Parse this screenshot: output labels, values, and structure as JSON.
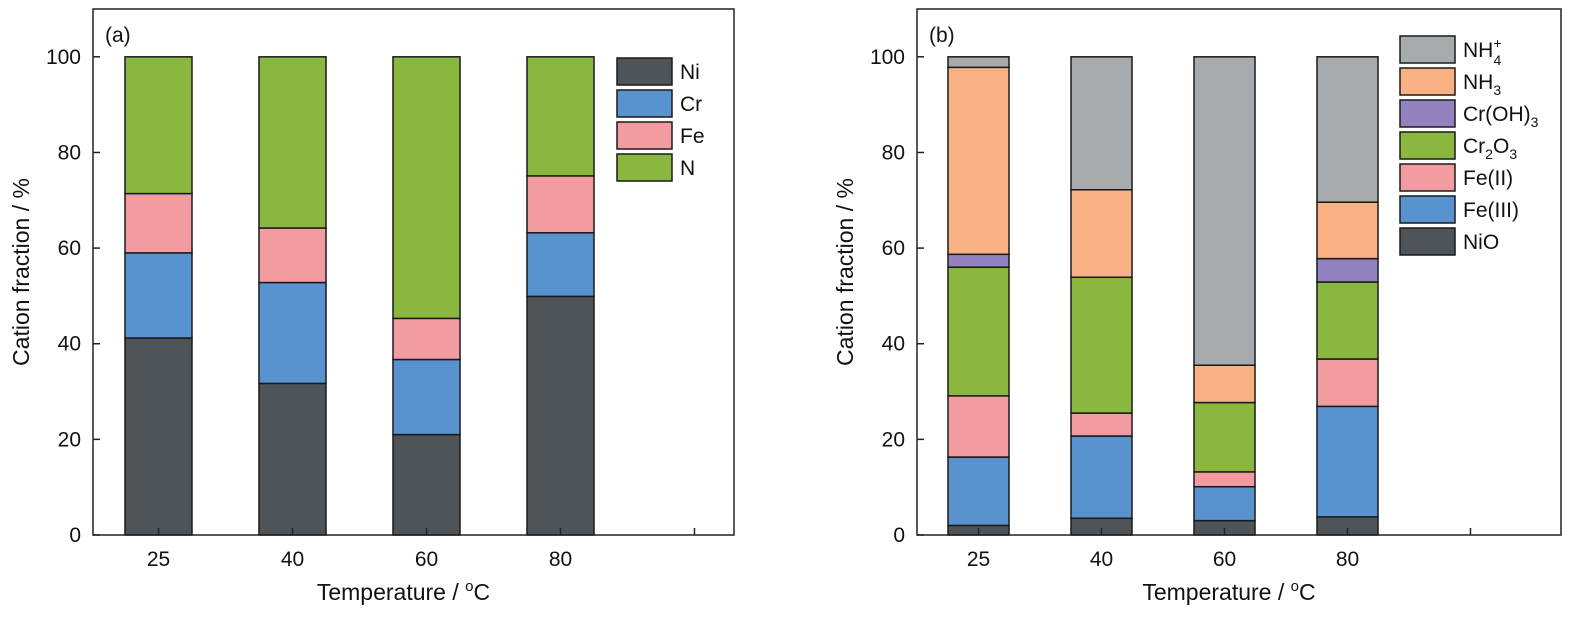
{
  "chart_data": [
    {
      "panel_label": "(a)",
      "type": "bar",
      "stacked": true,
      "categories": [
        "25",
        "40",
        "60",
        "80"
      ],
      "xlabel_text": "Temperature / ",
      "xlabel_sup": "o",
      "xlabel_unit": "C",
      "ylabel": "Cation fraction / %",
      "ylim": [
        0,
        110
      ],
      "yticks": [
        "0",
        "20",
        "40",
        "60",
        "80",
        "100"
      ],
      "legend_position": "top-right",
      "series": [
        {
          "name": "Ni",
          "color": "#4f5458",
          "values": [
            41.2,
            31.7,
            21.0,
            49.9
          ]
        },
        {
          "name": "Cr",
          "color": "#5893cf",
          "values": [
            17.8,
            21.1,
            15.7,
            13.3
          ]
        },
        {
          "name": "Fe",
          "color": "#f29ca2",
          "values": [
            12.4,
            11.4,
            8.6,
            11.9
          ]
        },
        {
          "name": "N",
          "color": "#8ab73f",
          "values": [
            28.6,
            35.8,
            54.7,
            24.9
          ]
        }
      ]
    },
    {
      "panel_label": "(b)",
      "type": "bar",
      "stacked": true,
      "categories": [
        "25",
        "40",
        "60",
        "80"
      ],
      "xlabel_text": "Temperature / ",
      "xlabel_sup": "o",
      "xlabel_unit": "C",
      "ylabel": "Cation fraction / %",
      "ylim": [
        0,
        110
      ],
      "yticks": [
        "0",
        "20",
        "40",
        "60",
        "80",
        "100"
      ],
      "legend_position": "top-right",
      "series": [
        {
          "name": "NiO",
          "color": "#4f5458",
          "values": [
            2.0,
            3.5,
            3.0,
            3.8
          ]
        },
        {
          "name": "Fe(III)",
          "color": "#5893cf",
          "values": [
            14.3,
            17.2,
            7.1,
            23.1
          ]
        },
        {
          "name": "Fe(II)",
          "color": "#f29ca2",
          "values": [
            12.8,
            4.8,
            3.1,
            9.9
          ]
        },
        {
          "name": "Cr2O3",
          "label_parts": [
            "Cr",
            "2",
            "O",
            "3"
          ],
          "color": "#8ab73f",
          "values": [
            26.9,
            28.4,
            14.5,
            16.1
          ]
        },
        {
          "name": "Cr(OH)3",
          "label_parts": [
            "Cr(OH)",
            "3"
          ],
          "color": "#9282c0",
          "values": [
            2.7,
            0.0,
            0.0,
            4.9
          ]
        },
        {
          "name": "NH3",
          "label_parts": [
            "NH",
            "3"
          ],
          "color": "#f9b184",
          "values": [
            39.1,
            18.3,
            7.8,
            11.8
          ]
        },
        {
          "name": "NH4+",
          "label_parts": [
            "NH",
            "4",
            "+"
          ],
          "color": "#a7abad",
          "values": [
            2.2,
            27.8,
            64.5,
            30.4
          ]
        }
      ]
    }
  ]
}
